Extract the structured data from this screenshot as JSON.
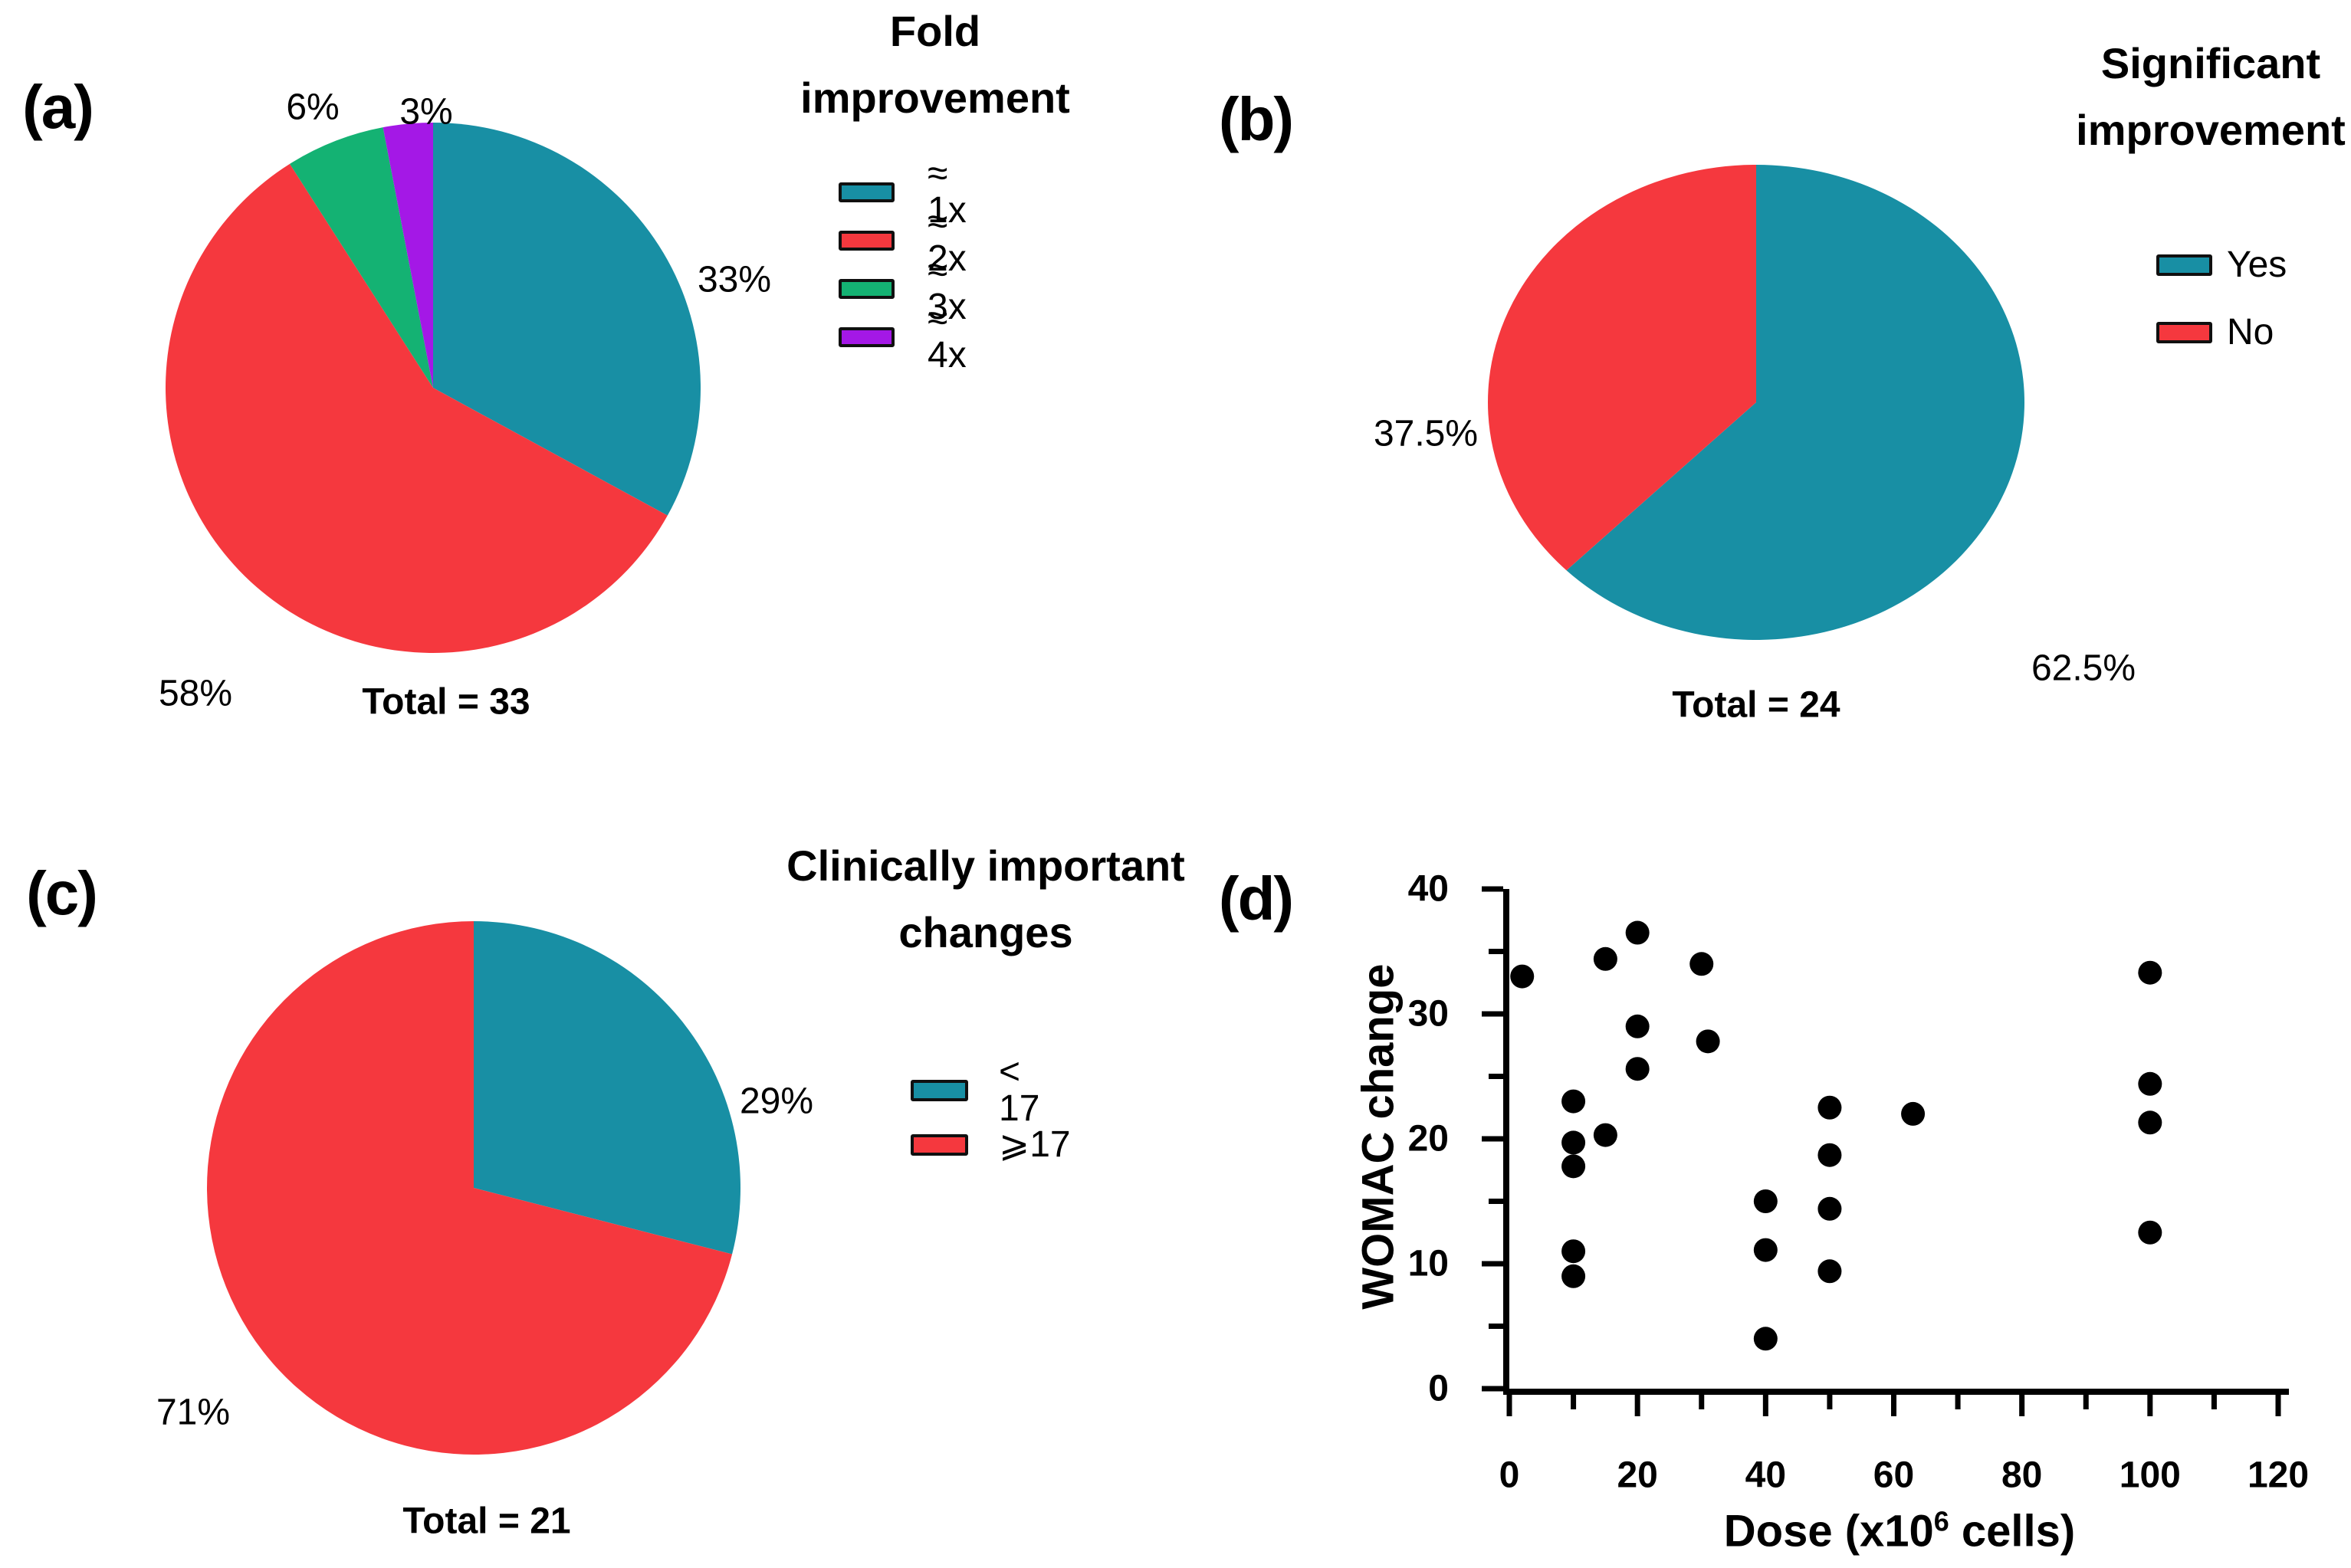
{
  "figure_type": "four-panel scientific figure",
  "chart_data": [
    {
      "id": "a",
      "panel_label": "(a)",
      "type": "pie",
      "title": "Fold improvement",
      "title_lines": [
        "Fold",
        "improvement"
      ],
      "total_label": "Total = 33",
      "total": 33,
      "legend_position": "right",
      "start_angle_deg": 0,
      "direction": "clockwise",
      "slices": [
        {
          "label": "≈ 1x",
          "percent": 33,
          "percent_label": "33%",
          "color": "#188FA4"
        },
        {
          "label": "≈ 2x",
          "percent": 58,
          "percent_label": "58%",
          "color": "#F5383E"
        },
        {
          "label": "≈ 3x",
          "percent": 6,
          "percent_label": "6%",
          "color": "#14B273"
        },
        {
          "label": "≈ 4x",
          "percent": 3,
          "percent_label": "3%",
          "color": "#A418E6"
        }
      ]
    },
    {
      "id": "b",
      "panel_label": "(b)",
      "type": "pie",
      "title": "Significant improvement",
      "title_lines": [
        "Significant",
        "improvement"
      ],
      "total_label": "Total = 24",
      "total": 24,
      "legend_position": "right",
      "start_angle_deg": 0,
      "direction": "clockwise",
      "slices": [
        {
          "label": "Yes",
          "percent": 62.5,
          "percent_label": "62.5%",
          "color": "#188FA4"
        },
        {
          "label": "No",
          "percent": 37.5,
          "percent_label": "37.5%",
          "color": "#F5383E"
        }
      ]
    },
    {
      "id": "c",
      "panel_label": "(c)",
      "type": "pie",
      "title": "Clinically important changes",
      "title_lines": [
        "Clinically important",
        "changes"
      ],
      "total_label": "Total = 21",
      "total": 21,
      "legend_position": "right",
      "start_angle_deg": 0,
      "direction": "clockwise",
      "slices": [
        {
          "label": "< 17",
          "percent": 29,
          "percent_label": "29%",
          "color": "#188FA4"
        },
        {
          "label": "⩾17",
          "percent": 71,
          "percent_label": "71%",
          "color": "#F5383E"
        }
      ]
    },
    {
      "id": "d",
      "panel_label": "(d)",
      "type": "scatter",
      "xlabel": "Dose (x10⁶ cells)",
      "xlabel_parts": {
        "pre": "Dose (x10",
        "sup": "6",
        "post": " cells)"
      },
      "ylabel": "WOMAC change",
      "xlim": [
        0,
        120
      ],
      "ylim": [
        0,
        40
      ],
      "x_major_ticks": [
        0,
        20,
        40,
        60,
        80,
        100,
        120
      ],
      "y_major_ticks": [
        0,
        10,
        20,
        30,
        40
      ],
      "x_minor_step": 10,
      "y_minor_step": 5,
      "grid": "off",
      "marker": "filled-circle",
      "marker_color": "#000000",
      "points": [
        [
          2,
          33
        ],
        [
          15,
          34.4
        ],
        [
          20,
          36.5
        ],
        [
          30,
          34
        ],
        [
          20,
          29
        ],
        [
          31,
          27.8
        ],
        [
          20,
          25.6
        ],
        [
          10,
          23
        ],
        [
          15,
          20.3
        ],
        [
          10,
          19.7
        ],
        [
          10,
          17.8
        ],
        [
          10,
          11
        ],
        [
          10,
          9
        ],
        [
          40,
          15
        ],
        [
          40,
          11.1
        ],
        [
          40,
          4
        ],
        [
          50,
          22.5
        ],
        [
          50,
          18.7
        ],
        [
          50,
          14.4
        ],
        [
          50,
          9.4
        ],
        [
          63,
          22
        ],
        [
          100,
          33.3
        ],
        [
          100,
          24.4
        ],
        [
          100,
          21.3
        ],
        [
          100,
          12.5
        ]
      ]
    }
  ]
}
